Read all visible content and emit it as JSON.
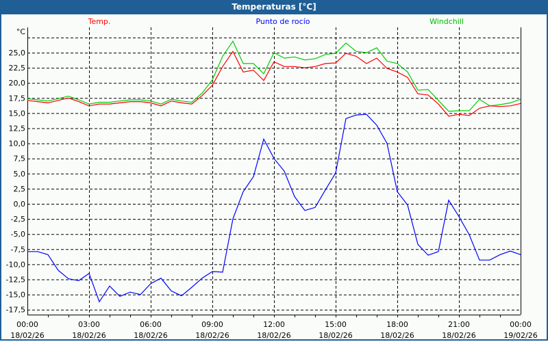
{
  "window": {
    "title": "Temperaturas [°C]"
  },
  "chart_data": {
    "type": "line",
    "title": "Temperaturas [°C]",
    "ylabel": "°C",
    "xlabel": "",
    "ylim": [
      -18.5,
      28.5
    ],
    "yticks": [
      25.0,
      22.5,
      20.0,
      17.5,
      15.0,
      12.5,
      10.0,
      7.5,
      5.0,
      2.5,
      0.0,
      -2.5,
      -5.0,
      -7.5,
      -10.0,
      -12.5,
      -15.0,
      -17.5
    ],
    "ytick_labels": [
      "25,0",
      "22,5",
      "20,0",
      "17,5",
      "15,0",
      "12,5",
      "10,0",
      "7,5",
      "5,0",
      "2,5",
      "0,0",
      "-2,5",
      "-5,0",
      "-7,5",
      "-10,0",
      "-12,5",
      "-15,0",
      "-17,5"
    ],
    "grid_lines": [
      27.5,
      25.0,
      22.5,
      20.0,
      17.5,
      15.0,
      12.5,
      10.0,
      7.5,
      5.0,
      2.5,
      0.0,
      -2.5,
      -5.0,
      -7.5,
      -10.0,
      -12.5,
      -15.0,
      -17.5
    ],
    "xlim_hours": [
      0,
      24
    ],
    "xticks_hours": [
      0,
      3,
      6,
      9,
      12,
      15,
      18,
      21,
      24
    ],
    "xtick_labels": [
      [
        "00:00",
        "18/02/26"
      ],
      [
        "03:00",
        "18/02/26"
      ],
      [
        "06:00",
        "18/02/26"
      ],
      [
        "09:00",
        "18/02/26"
      ],
      [
        "12:00",
        "18/02/26"
      ],
      [
        "15:00",
        "18/02/26"
      ],
      [
        "18:00",
        "18/02/26"
      ],
      [
        "21:00",
        "18/02/26"
      ],
      [
        "00:00",
        "19/02/26"
      ]
    ],
    "x_hours": [
      0,
      0.5,
      1,
      1.5,
      2,
      2.5,
      3,
      3.5,
      4,
      4.5,
      5,
      5.5,
      6,
      6.5,
      7,
      7.5,
      8,
      8.5,
      9,
      9.5,
      10,
      10.5,
      11,
      11.5,
      12,
      12.5,
      13,
      13.5,
      14,
      14.5,
      15,
      15.5,
      16,
      16.5,
      17,
      17.5,
      18,
      18.5,
      19,
      19.5,
      20,
      20.5,
      21,
      21.5,
      22,
      22.5,
      23,
      23.5,
      24
    ],
    "series": [
      {
        "name": "Temp.",
        "color": "#ff0000",
        "values": [
          17.1,
          16.9,
          16.7,
          17.1,
          17.5,
          16.9,
          16.2,
          16.5,
          16.5,
          16.7,
          16.9,
          16.9,
          16.7,
          16.2,
          17.0,
          16.7,
          16.5,
          17.9,
          19.6,
          22.7,
          25.2,
          21.8,
          22.1,
          20.4,
          23.5,
          22.7,
          22.7,
          22.5,
          22.7,
          23.2,
          23.3,
          24.9,
          24.4,
          23.2,
          24.1,
          22.4,
          21.8,
          20.9,
          18.2,
          18.0,
          16.5,
          14.5,
          14.8,
          14.6,
          15.8,
          16.2,
          16.1,
          16.2,
          16.6
        ]
      },
      {
        "name": "Punto de rocío",
        "color": "#0000ff",
        "values": [
          -7.9,
          -7.9,
          -8.4,
          -11.0,
          -12.4,
          -12.7,
          -11.5,
          -16.2,
          -13.6,
          -15.3,
          -14.6,
          -15.0,
          -13.2,
          -12.3,
          -14.4,
          -15.2,
          -13.8,
          -12.3,
          -11.2,
          -11.3,
          -2.5,
          2.0,
          4.5,
          10.7,
          7.5,
          5.4,
          1.2,
          -1.1,
          -0.6,
          2.3,
          5.1,
          14.1,
          14.7,
          14.8,
          13.0,
          10.0,
          2.0,
          -0.2,
          -6.7,
          -8.5,
          -7.9,
          0.6,
          -2.1,
          -5.1,
          -9.3,
          -9.3,
          -8.4,
          -7.8,
          -8.4
        ]
      },
      {
        "name": "Windchill",
        "color": "#00cc00",
        "values": [
          17.4,
          17.2,
          17.0,
          17.4,
          17.8,
          17.2,
          16.5,
          16.8,
          16.8,
          17.0,
          17.2,
          17.2,
          17.0,
          16.5,
          17.3,
          17.0,
          16.8,
          18.3,
          20.5,
          24.4,
          26.9,
          23.2,
          23.2,
          21.5,
          25.0,
          24.1,
          24.3,
          23.8,
          24.0,
          24.7,
          24.9,
          26.6,
          25.2,
          25.0,
          25.8,
          23.6,
          23.2,
          21.8,
          18.8,
          18.9,
          17.1,
          15.3,
          15.4,
          15.4,
          17.3,
          16.2,
          16.4,
          16.7,
          17.3
        ]
      }
    ],
    "legend": [
      "Temp.",
      "Punto de rocío",
      "Windchill"
    ],
    "legend_placement": "top",
    "grid": true
  }
}
